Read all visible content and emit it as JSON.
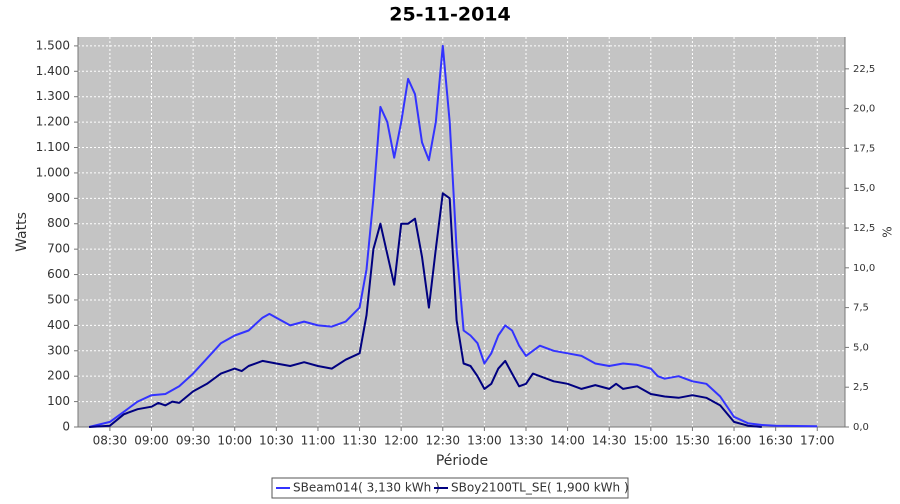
{
  "chart_data": {
    "type": "line",
    "title": "25-11-2014",
    "xlabel": "Période",
    "ylabel": "Watts",
    "y2label": "%",
    "xlim": [
      "08:07",
      "17:20"
    ],
    "xticks": [
      "08:30",
      "09:00",
      "09:30",
      "10:00",
      "10:30",
      "11:00",
      "11:30",
      "12:00",
      "12:30",
      "13:00",
      "13:30",
      "14:00",
      "14:30",
      "15:00",
      "15:30",
      "16:00",
      "16:30",
      "17:00"
    ],
    "ylim": [
      0,
      1535
    ],
    "yticks": [
      0,
      100,
      200,
      300,
      400,
      500,
      600,
      700,
      800,
      900,
      {
        "value": 1000,
        "label": "1.000"
      },
      {
        "value": 1100,
        "label": "1.100"
      },
      {
        "value": 1200,
        "label": "1.200"
      },
      {
        "value": 1300,
        "label": "1.300"
      },
      {
        "value": 1400,
        "label": "1.400"
      },
      {
        "value": 1500,
        "label": "1.500"
      }
    ],
    "y2lim": [
      0,
      24.5
    ],
    "y2ticks": [
      {
        "value": 0,
        "label": "0,0"
      },
      {
        "value": 2.5,
        "label": "2,5"
      },
      {
        "value": 5,
        "label": "5,0"
      },
      {
        "value": 7.5,
        "label": "7,5"
      },
      {
        "value": 10,
        "label": "10,0"
      },
      {
        "value": 12.5,
        "label": "12,5"
      },
      {
        "value": 15,
        "label": "15,0"
      },
      {
        "value": 17.5,
        "label": "17,5"
      },
      {
        "value": 20,
        "label": "20,0"
      },
      {
        "value": 22.5,
        "label": "22,5"
      }
    ],
    "grid": true,
    "legend": "bottom",
    "series": [
      {
        "name": "SBeam014( 3,130 kWh )",
        "color": "#3333ff",
        "x": [
          "08:15",
          "08:30",
          "08:40",
          "08:50",
          "09:00",
          "09:10",
          "09:20",
          "09:30",
          "09:40",
          "09:50",
          "10:00",
          "10:10",
          "10:20",
          "10:25",
          "10:30",
          "10:40",
          "10:50",
          "11:00",
          "11:10",
          "11:20",
          "11:30",
          "11:35",
          "11:40",
          "11:45",
          "11:50",
          "11:55",
          "12:00",
          "12:05",
          "12:10",
          "12:15",
          "12:20",
          "12:25",
          "12:30",
          "12:35",
          "12:40",
          "12:45",
          "12:50",
          "12:55",
          "13:00",
          "13:05",
          "13:10",
          "13:15",
          "13:20",
          "13:25",
          "13:30",
          "13:35",
          "13:40",
          "13:50",
          "14:00",
          "14:10",
          "14:20",
          "14:30",
          "14:40",
          "14:50",
          "15:00",
          "15:05",
          "15:10",
          "15:20",
          "15:30",
          "15:40",
          "15:50",
          "16:00",
          "16:10",
          "16:20",
          "16:30",
          "17:00"
        ],
        "values": [
          0,
          20,
          60,
          100,
          125,
          130,
          160,
          210,
          270,
          330,
          360,
          380,
          430,
          445,
          430,
          400,
          415,
          400,
          395,
          415,
          470,
          620,
          900,
          1260,
          1200,
          1060,
          1200,
          1370,
          1310,
          1120,
          1050,
          1200,
          1500,
          1200,
          700,
          380,
          360,
          330,
          250,
          290,
          360,
          400,
          380,
          320,
          280,
          300,
          320,
          300,
          290,
          280,
          250,
          240,
          250,
          245,
          230,
          200,
          190,
          200,
          180,
          170,
          120,
          40,
          15,
          8,
          5,
          3
        ]
      },
      {
        "name": "SBoy2100TL_SE( 1,900 kWh )",
        "color": "#000080",
        "x": [
          "08:15",
          "08:30",
          "08:40",
          "08:50",
          "09:00",
          "09:05",
          "09:10",
          "09:15",
          "09:20",
          "09:30",
          "09:40",
          "09:50",
          "10:00",
          "10:05",
          "10:10",
          "10:20",
          "10:30",
          "10:40",
          "10:50",
          "11:00",
          "11:10",
          "11:20",
          "11:30",
          "11:35",
          "11:40",
          "11:45",
          "11:50",
          "11:55",
          "12:00",
          "12:05",
          "12:10",
          "12:15",
          "12:20",
          "12:25",
          "12:30",
          "12:35",
          "12:40",
          "12:45",
          "12:50",
          "12:55",
          "13:00",
          "13:05",
          "13:10",
          "13:15",
          "13:20",
          "13:25",
          "13:30",
          "13:35",
          "13:40",
          "13:50",
          "14:00",
          "14:10",
          "14:20",
          "14:30",
          "14:35",
          "14:40",
          "14:50",
          "15:00",
          "15:10",
          "15:20",
          "15:30",
          "15:40",
          "15:50",
          "16:00",
          "16:10",
          "16:20"
        ],
        "values": [
          0,
          5,
          50,
          70,
          80,
          95,
          85,
          100,
          95,
          140,
          170,
          210,
          230,
          220,
          240,
          260,
          250,
          240,
          255,
          240,
          230,
          265,
          290,
          440,
          700,
          800,
          680,
          560,
          800,
          800,
          820,
          670,
          470,
          700,
          920,
          900,
          420,
          250,
          240,
          200,
          150,
          170,
          230,
          260,
          210,
          160,
          170,
          210,
          200,
          180,
          170,
          150,
          165,
          150,
          170,
          150,
          160,
          130,
          120,
          115,
          125,
          115,
          85,
          20,
          5,
          0
        ]
      }
    ]
  }
}
